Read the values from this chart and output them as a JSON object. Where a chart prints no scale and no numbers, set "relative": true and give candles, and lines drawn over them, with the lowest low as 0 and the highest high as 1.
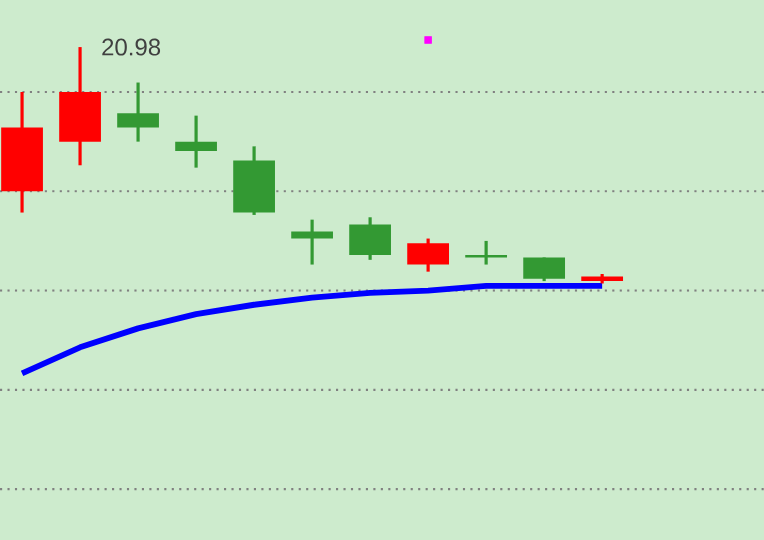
{
  "chart_data": {
    "type": "candlestick",
    "relative": true,
    "categories": [
      null,
      null,
      null,
      null,
      null,
      null,
      null,
      null,
      null,
      null,
      null
    ],
    "ohlc": [
      [
        0.39,
        0.81,
        0.3,
        0.66
      ],
      [
        0.6,
        1,
        0.5,
        0.81
      ],
      [
        0.72,
        0.85,
        0.6,
        0.66
      ],
      [
        0.6,
        0.71,
        0.49,
        0.56
      ],
      [
        0.52,
        0.58,
        0.29,
        0.3
      ],
      [
        0.22,
        0.27,
        0.08,
        0.19
      ],
      [
        0.25,
        0.28,
        0.1,
        0.12
      ],
      [
        0.08,
        0.19,
        0.05,
        0.17
      ],
      [
        0.12,
        0.18,
        0.08,
        0.11
      ],
      [
        0.11,
        0.11,
        0.01,
        0.02
      ],
      [
        0.01,
        0.04,
        0,
        0.03
      ]
    ],
    "colors": [
      "#ff0000",
      "#ff0000",
      "#339933",
      "#339933",
      "#339933",
      "#339933",
      "#339933",
      "#ff0000",
      "#339933",
      "#339933",
      "#ff0000"
    ],
    "series": [
      {
        "type": "line",
        "color": "#0000ff",
        "values": [
          -0.38,
          -0.27,
          -0.19,
          -0.13,
          -0.09,
          -0.06,
          -0.04,
          -0.03,
          -0.01,
          -0.01,
          -0.01
        ]
      },
      {
        "type": "scatter",
        "color": "#ff00ff",
        "values": [
          null,
          null,
          null,
          null,
          null,
          null,
          null,
          1.03,
          null,
          null,
          null
        ]
      }
    ],
    "ref_lines": [
      {
        "axis": "y",
        "value": 0.81,
        "color": "#808080",
        "line_style": "dotted"
      },
      {
        "axis": "y",
        "value": 0.39,
        "color": "#808080",
        "line_style": "dotted"
      },
      {
        "axis": "y",
        "value": -0.03,
        "color": "#808080",
        "line_style": "dotted"
      },
      {
        "axis": "y",
        "value": -0.45,
        "color": "#808080",
        "line_style": "dotted"
      },
      {
        "axis": "y",
        "value": -0.87,
        "color": "#808080",
        "line_style": "dotted"
      }
    ],
    "annotations": [
      "20.98"
    ]
  }
}
